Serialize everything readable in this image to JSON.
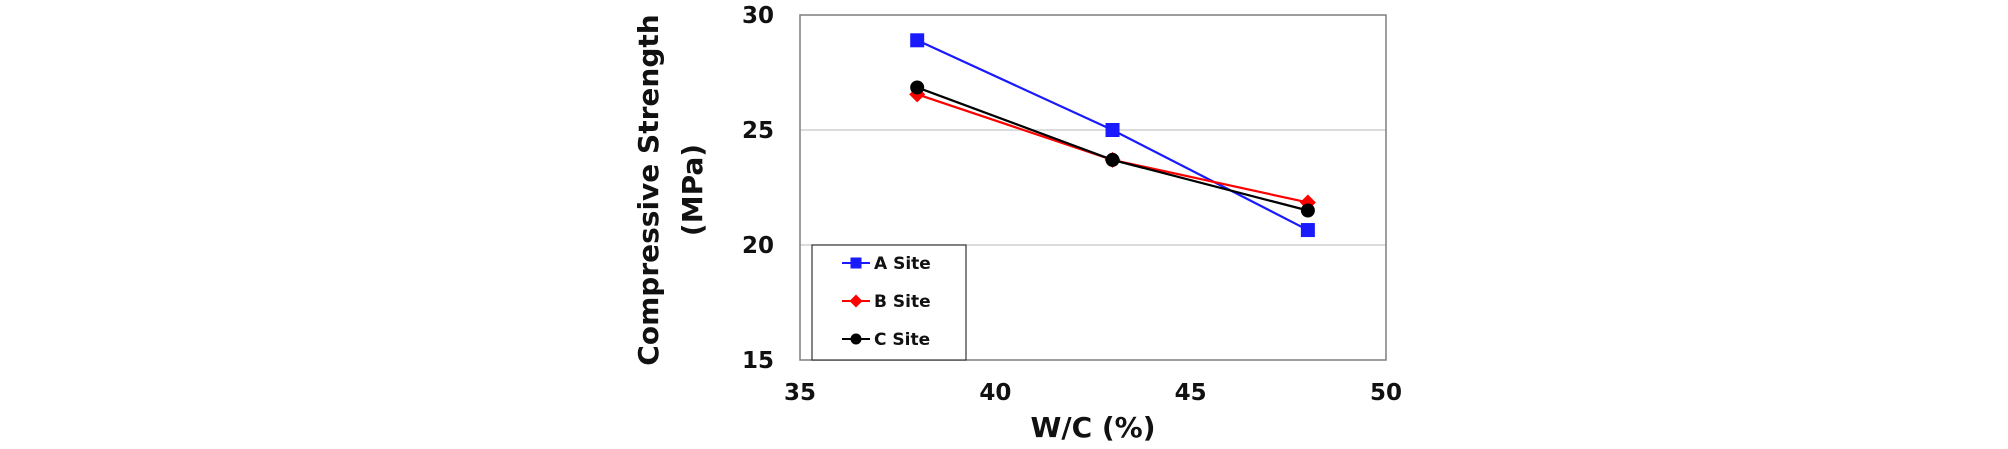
{
  "chart_data": {
    "type": "line",
    "title": "",
    "xlabel": "W/C (%)",
    "ylabel_lines": [
      "Compressive Strength",
      "(MPa)"
    ],
    "xlim": [
      35,
      50
    ],
    "ylim": [
      15,
      30
    ],
    "x_ticks": [
      35,
      40,
      45,
      50
    ],
    "y_ticks": [
      15,
      20,
      25,
      30
    ],
    "grid": "horizontal major gridlines",
    "legend_position": "bottom-left inside plot",
    "x": [
      38,
      43,
      48
    ],
    "series": [
      {
        "name": "A Site",
        "values": [
          28.9,
          25.0,
          20.65
        ],
        "color": "#1a1aff",
        "marker": "square"
      },
      {
        "name": "B Site",
        "values": [
          26.55,
          23.7,
          21.85
        ],
        "color": "#ff0000",
        "marker": "diamond"
      },
      {
        "name": "C Site",
        "values": [
          26.85,
          23.7,
          21.5
        ],
        "color": "#000000",
        "marker": "circle"
      }
    ]
  }
}
